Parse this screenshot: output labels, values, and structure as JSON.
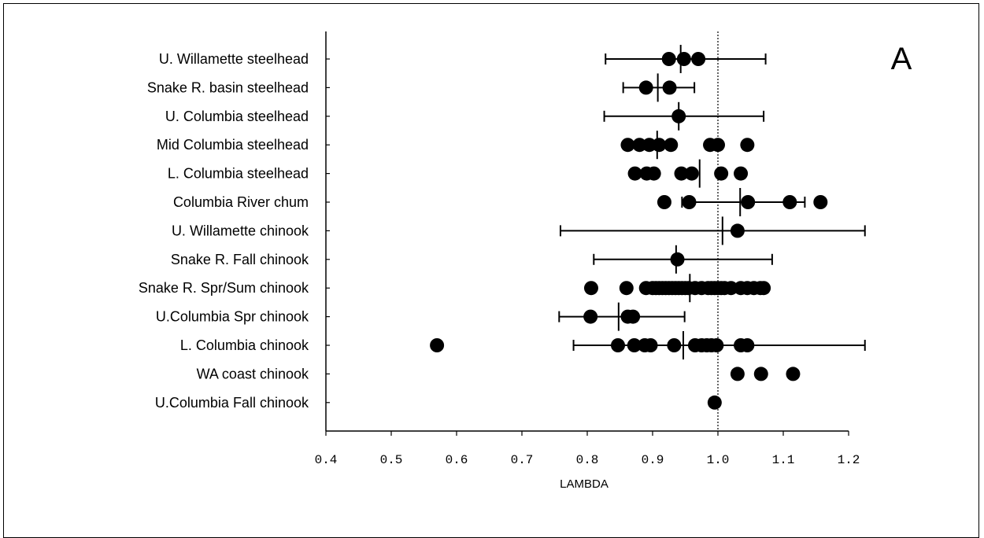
{
  "chart_data": {
    "type": "scatter",
    "panel_label": "A",
    "xlabel": "LAMBDA",
    "xlim": [
      0.4,
      1.2
    ],
    "xticks": [
      "0.4",
      "0.5",
      "0.6",
      "0.7",
      "0.8",
      "0.9",
      "1.0",
      "1.1",
      "1.2"
    ],
    "reference_line_x": 1.0,
    "grid": false,
    "legend": "none",
    "categories": [
      "U. Willamette steelhead",
      "Snake R. basin steelhead",
      "U. Columbia steelhead",
      "Mid Columbia steelhead",
      "L.  Columbia steelhead",
      "Columbia River chum",
      "U. Willamette chinook",
      "Snake R. Fall chinook",
      "Snake R. Spr/Sum chinook",
      "U.Columbia Spr chinook",
      "L. Columbia chinook",
      "WA coast chinook",
      "U.Columbia Fall chinook"
    ],
    "series": [
      {
        "points": [
          0.925,
          0.948,
          0.97
        ],
        "mean": 0.943,
        "ci": [
          0.828,
          1.073
        ]
      },
      {
        "points": [
          0.89,
          0.926
        ],
        "mean": 0.908,
        "ci": [
          0.855,
          0.964
        ]
      },
      {
        "points": [
          0.94
        ],
        "mean": 0.94,
        "ci": [
          0.826,
          1.07
        ]
      },
      {
        "points": [
          0.862,
          0.88,
          0.895,
          0.91,
          0.928,
          0.988,
          1.0,
          1.045
        ],
        "mean": 0.907
      },
      {
        "points": [
          0.873,
          0.891,
          0.902,
          0.944,
          0.96,
          1.005,
          1.035
        ],
        "mean": 0.972
      },
      {
        "points": [
          0.918,
          0.956,
          1.046,
          1.11,
          1.157
        ],
        "mean": 1.034,
        "ci": [
          0.945,
          1.133
        ]
      },
      {
        "points": [
          1.03
        ],
        "mean": 1.007,
        "ci": [
          0.759,
          1.225
        ]
      },
      {
        "points": [
          0.938
        ],
        "mean": 0.936,
        "ci": [
          0.81,
          1.083
        ]
      },
      {
        "points": [
          0.806,
          0.86,
          0.89,
          0.9,
          0.905,
          0.91,
          0.915,
          0.92,
          0.925,
          0.93,
          0.935,
          0.94,
          0.945,
          0.95,
          0.955,
          0.965,
          0.975,
          0.985,
          0.99,
          0.995,
          1.0,
          1.005,
          1.01,
          1.02,
          1.035,
          1.045,
          1.055,
          1.065,
          1.07
        ],
        "mean": 0.957
      },
      {
        "points": [
          0.805,
          0.862,
          0.87
        ],
        "mean": 0.848,
        "ci": [
          0.757,
          0.949
        ]
      },
      {
        "points": [
          0.57,
          0.847,
          0.872,
          0.888,
          0.897,
          0.933,
          0.965,
          0.975,
          0.983,
          0.99,
          0.998,
          1.035,
          1.045
        ],
        "mean": 0.947,
        "ci": [
          0.779,
          1.225
        ]
      },
      {
        "points": [
          1.03,
          1.066,
          1.115
        ]
      },
      {
        "points": [
          0.995
        ]
      }
    ]
  }
}
